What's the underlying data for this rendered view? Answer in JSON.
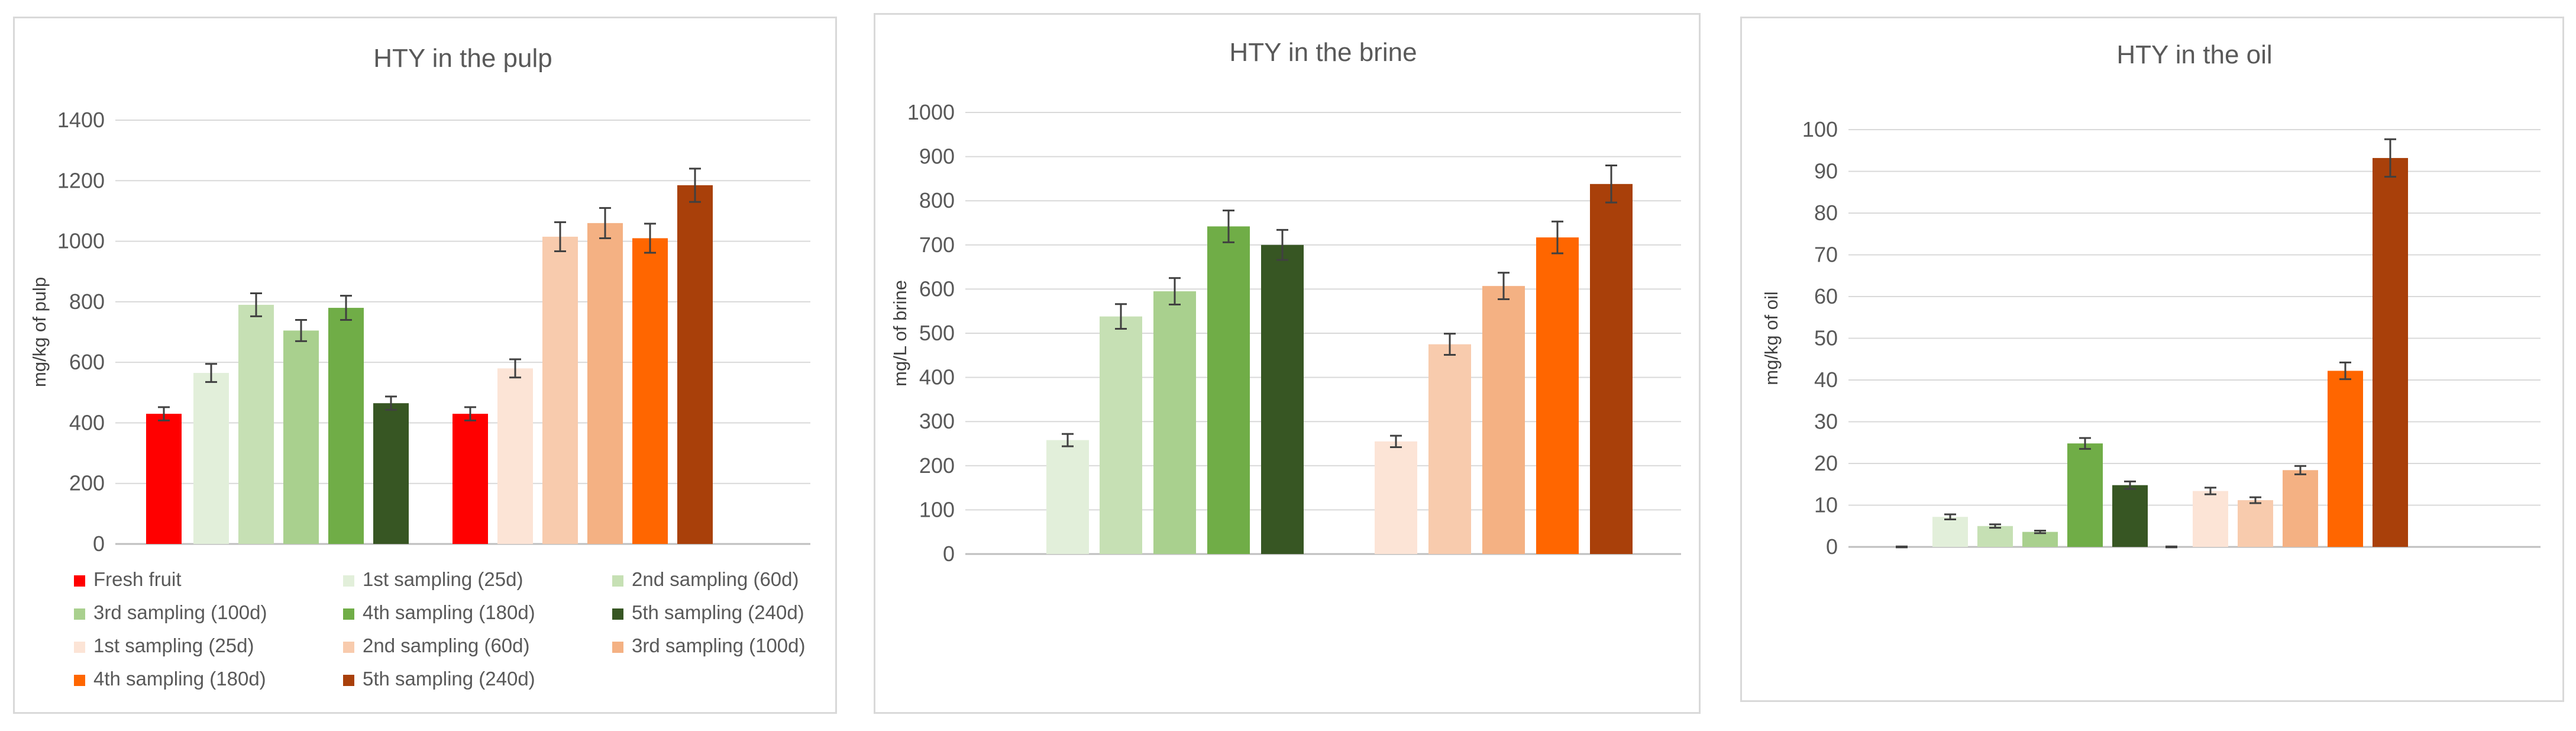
{
  "chart_data": [
    {
      "type": "bar",
      "title": "HTY in the pulp",
      "ylabel": "mg/kg of pulp",
      "xlabel": "",
      "ylim": [
        0,
        1400
      ],
      "yticks": [
        0,
        200,
        400,
        600,
        800,
        1000,
        1200,
        1400
      ],
      "grid": true,
      "legend": "bottom",
      "error_bars": true,
      "series": [
        {
          "name": "Fresh fruit",
          "color": "#ff0000",
          "value": 430,
          "error": 22
        },
        {
          "name": "1st sampling (25d)",
          "color": "#e2efda",
          "value": 565,
          "error": 30
        },
        {
          "name": "2nd sampling (60d)",
          "color": "#c6e0b4",
          "value": 790,
          "error": 38
        },
        {
          "name": "3rd sampling (100d)",
          "color": "#a9d08e",
          "value": 705,
          "error": 35
        },
        {
          "name": "4th sampling (180d)",
          "color": "#70ad47",
          "value": 780,
          "error": 40
        },
        {
          "name": "5th sampling (240d)",
          "color": "#375623",
          "value": 465,
          "error": 22
        },
        {
          "name": "Fresh fruit",
          "color": "#ff0000",
          "value": 430,
          "error": 22
        },
        {
          "name": "1st sampling (25d)",
          "color": "#fce4d6",
          "value": 580,
          "error": 30
        },
        {
          "name": "2nd sampling (60d)",
          "color": "#f8cbad",
          "value": 1015,
          "error": 48
        },
        {
          "name": "3rd sampling (100d)",
          "color": "#f4b183",
          "value": 1060,
          "error": 50
        },
        {
          "name": "4th sampling (180d)",
          "color": "#ff6600",
          "value": 1010,
          "error": 48
        },
        {
          "name": "5th sampling (240d)",
          "color": "#a9400a",
          "value": 1185,
          "error": 55
        }
      ],
      "legend_entries": [
        {
          "label": "Fresh fruit",
          "color": "#ff0000"
        },
        {
          "label": "1st sampling (25d)",
          "color": "#e2efda"
        },
        {
          "label": "2nd sampling (60d)",
          "color": "#c6e0b4"
        },
        {
          "label": "3rd sampling (100d)",
          "color": "#a9d08e"
        },
        {
          "label": "4th sampling (180d)",
          "color": "#70ad47"
        },
        {
          "label": "5th sampling (240d)",
          "color": "#375623"
        },
        {
          "label": "1st sampling (25d)",
          "color": "#fce4d6"
        },
        {
          "label": "2nd sampling (60d)",
          "color": "#f8cbad"
        },
        {
          "label": "3rd sampling (100d)",
          "color": "#f4b183"
        },
        {
          "label": "4th sampling (180d)",
          "color": "#ff6600"
        },
        {
          "label": "5th sampling (240d)",
          "color": "#a9400a"
        }
      ]
    },
    {
      "type": "bar",
      "title": "HTY in the brine",
      "ylabel": "mg/L of brine",
      "xlabel": "",
      "ylim": [
        0,
        1000
      ],
      "yticks": [
        0,
        100,
        200,
        300,
        400,
        500,
        600,
        700,
        800,
        900,
        1000
      ],
      "grid": true,
      "legend": "none",
      "error_bars": true,
      "series": [
        {
          "color": "#e2efda",
          "value": 258,
          "error": 14
        },
        {
          "color": "#c6e0b4",
          "value": 538,
          "error": 28
        },
        {
          "color": "#a9d08e",
          "value": 595,
          "error": 30
        },
        {
          "color": "#70ad47",
          "value": 742,
          "error": 36
        },
        {
          "color": "#375623",
          "value": 700,
          "error": 34
        },
        {
          "color": "#fce4d6",
          "value": 255,
          "error": 13
        },
        {
          "color": "#f8cbad",
          "value": 475,
          "error": 24
        },
        {
          "color": "#f4b183",
          "value": 607,
          "error": 30
        },
        {
          "color": "#ff6600",
          "value": 717,
          "error": 36
        },
        {
          "color": "#a9400a",
          "value": 838,
          "error": 42
        }
      ]
    },
    {
      "type": "bar",
      "title": "HTY in the oil",
      "ylabel": "mg/kg of oil",
      "xlabel": "",
      "ylim": [
        0,
        100
      ],
      "yticks": [
        0,
        10,
        20,
        30,
        40,
        50,
        60,
        70,
        80,
        90,
        100
      ],
      "grid": true,
      "legend": "none",
      "error_bars": true,
      "series": [
        {
          "color": "#ff0000",
          "value": 0,
          "error": 0.1
        },
        {
          "color": "#e2efda",
          "value": 7.2,
          "error": 0.6
        },
        {
          "color": "#c6e0b4",
          "value": 5.0,
          "error": 0.4
        },
        {
          "color": "#a9d08e",
          "value": 3.6,
          "error": 0.3
        },
        {
          "color": "#70ad47",
          "value": 24.8,
          "error": 1.3
        },
        {
          "color": "#375623",
          "value": 14.8,
          "error": 0.9
        },
        {
          "color": "#ff0000",
          "value": 0,
          "error": 0.1
        },
        {
          "color": "#fce4d6",
          "value": 13.4,
          "error": 0.8
        },
        {
          "color": "#f8cbad",
          "value": 11.2,
          "error": 0.7
        },
        {
          "color": "#f4b183",
          "value": 18.4,
          "error": 1.0
        },
        {
          "color": "#ff6600",
          "value": 42.2,
          "error": 2.0
        },
        {
          "color": "#a9400a",
          "value": 93.2,
          "error": 4.5
        }
      ]
    }
  ]
}
